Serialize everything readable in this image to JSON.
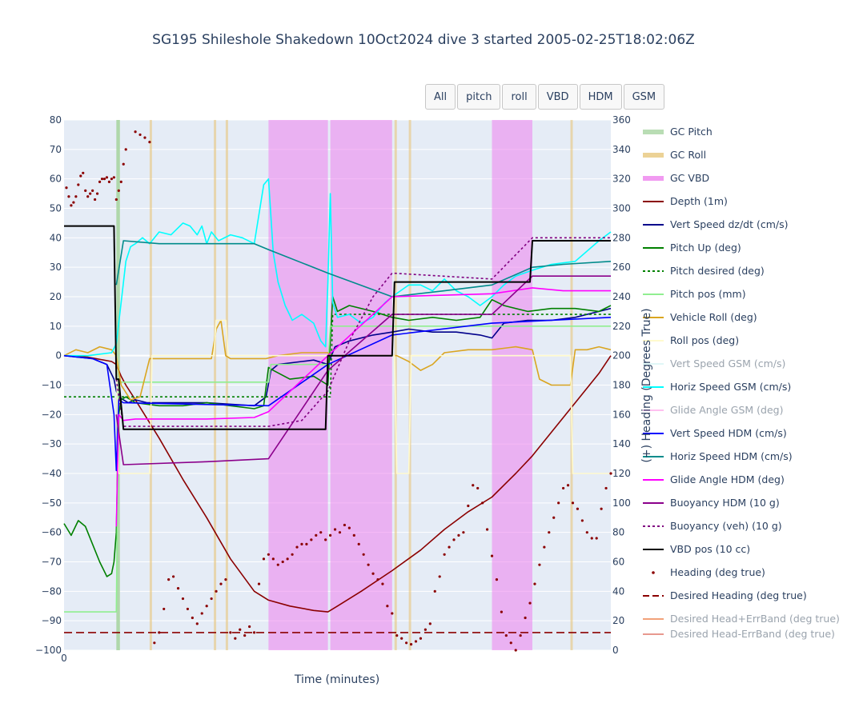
{
  "title": "SG195 Shileshole Shakedown 10Oct2024 dive 3 started 2005-02-25T18:02:06Z",
  "buttons": [
    "All",
    "pitch",
    "roll",
    "VBD",
    "HDM",
    "GSM"
  ],
  "chart_data": {
    "type": "line",
    "xlabel": "Time (minutes)",
    "ylabel_left": "",
    "ylabel_right": "(+) Heading (Degrees True)",
    "x_ticks": [
      "0"
    ],
    "xlim": [
      0,
      230
    ],
    "ylim_left": [
      -100,
      80
    ],
    "ylim_right": [
      0,
      360
    ],
    "y_ticks_left": [
      80,
      70,
      60,
      50,
      40,
      30,
      20,
      10,
      0,
      -10,
      -20,
      -30,
      -40,
      -50,
      -60,
      -70,
      -80,
      -90,
      -100
    ],
    "y_ticks_right": [
      360,
      340,
      320,
      300,
      280,
      260,
      240,
      220,
      200,
      180,
      160,
      140,
      120,
      100,
      80,
      60,
      40,
      20,
      0
    ],
    "grid": true,
    "legend": "right",
    "colors": {
      "plot_bg": "#e5ecf6",
      "gc_pitch": "#a8d5a2",
      "gc_roll": "#e8c77d",
      "gc_vbd": "#ee82ee",
      "depth": "#8b0000",
      "vert_speed": "#00008b",
      "pitch_up": "#008000",
      "pitch_desired": "#008000",
      "pitch_pos": "#90ee90",
      "vehicle_roll": "#daa520",
      "roll_pos": "#fffacd",
      "horiz_gsm": "#00ffff",
      "vert_hdm": "#0000ff",
      "horiz_hdm": "#008b8b",
      "glide_hdm": "#ff00ff",
      "buoy_hdm": "#8b008b",
      "buoy_veh": "#800080",
      "vbd_pos": "#000000",
      "heading": "#8b0000",
      "desired_heading": "#8b0000"
    },
    "gc_pitch_bands": [
      [
        22,
        23.5
      ]
    ],
    "gc_roll_bands": [
      [
        36,
        37
      ],
      [
        63,
        64
      ],
      [
        68,
        69
      ],
      [
        139,
        140
      ],
      [
        145,
        146
      ],
      [
        213,
        214
      ]
    ],
    "gc_vbd_bands": [
      [
        86,
        111
      ],
      [
        112,
        138
      ],
      [
        180,
        197
      ]
    ],
    "series": [
      {
        "name": "GC Pitch",
        "axis": "left",
        "legend_only": true
      },
      {
        "name": "GC Roll",
        "axis": "left",
        "legend_only": true
      },
      {
        "name": "GC VBD",
        "axis": "left",
        "legend_only": true
      },
      {
        "name": "Depth (1m)",
        "axis": "left",
        "x": [
          0,
          10,
          20,
          22,
          24,
          26,
          30,
          40,
          50,
          60,
          70,
          80,
          86,
          95,
          105,
          111,
          115,
          125,
          138,
          150,
          160,
          170,
          180,
          190,
          197,
          205,
          215,
          225,
          230
        ],
        "y": [
          0,
          -0.5,
          -2,
          -3,
          -7,
          -10,
          -15,
          -28,
          -42,
          -55,
          -69,
          -80,
          -83,
          -85,
          -86.5,
          -87,
          -85,
          -80,
          -73,
          -66,
          -59,
          -53,
          -48,
          -40,
          -34,
          -26,
          -16,
          -6,
          0
        ]
      },
      {
        "name": "Vert Speed dz/dt (cm/s)",
        "axis": "left",
        "x": [
          0,
          12,
          18,
          21,
          22,
          23,
          25,
          27,
          30,
          35,
          40,
          50,
          60,
          70,
          80,
          85,
          87,
          90,
          100,
          105,
          111,
          114,
          120,
          130,
          138,
          145,
          155,
          165,
          175,
          180,
          185,
          195,
          205,
          215,
          225,
          230
        ],
        "y": [
          0,
          -1,
          -3,
          -8,
          -12,
          -14,
          -15,
          -16,
          -15,
          -16,
          -16,
          -16,
          -16,
          -16.5,
          -17,
          -14,
          -5,
          -3,
          -2,
          -1.5,
          -3,
          3,
          5,
          7,
          8,
          9,
          8,
          8,
          7,
          6,
          11,
          12,
          12,
          13,
          15,
          16
        ]
      },
      {
        "name": "Pitch Up (deg)",
        "axis": "left",
        "x": [
          0,
          3,
          6,
          9,
          12,
          15,
          18,
          20,
          21,
          22,
          23,
          24,
          26,
          30,
          40,
          50,
          60,
          70,
          80,
          84,
          86,
          88,
          95,
          105,
          111,
          113,
          115,
          120,
          130,
          138,
          145,
          155,
          165,
          175,
          180,
          185,
          195,
          205,
          215,
          225,
          230
        ],
        "y": [
          -57,
          -61,
          -56,
          -58,
          -64,
          -70,
          -75,
          -74,
          -70,
          -60,
          -20,
          -15,
          -14,
          -16,
          -17,
          -17,
          -16,
          -17,
          -18,
          -17,
          -4,
          -5,
          -8,
          -7,
          -10,
          20,
          15,
          17,
          15,
          13,
          12,
          13,
          12,
          13,
          19,
          17,
          15,
          16,
          16,
          15,
          17
        ]
      },
      {
        "name": "Pitch desired (deg)",
        "axis": "left",
        "dash": true,
        "x": [
          0,
          112,
          113,
          230
        ],
        "y": [
          -14,
          -14,
          14,
          14
        ]
      },
      {
        "name": "Pitch pos (mm)",
        "axis": "left",
        "x": [
          0,
          22,
          23,
          86,
          87,
          111,
          112,
          230
        ],
        "y": [
          -87,
          -87,
          -9,
          -9,
          -3,
          -3,
          10,
          10
        ]
      },
      {
        "name": "Vehicle Roll (deg)",
        "axis": "left",
        "x": [
          0,
          5,
          10,
          15,
          20,
          22,
          24,
          28,
          32,
          36,
          38,
          45,
          55,
          62,
          64,
          66,
          68,
          70,
          80,
          85,
          90,
          100,
          111,
          112,
          120,
          130,
          138,
          140,
          145,
          150,
          155,
          160,
          170,
          180,
          190,
          197,
          200,
          205,
          213,
          215,
          220,
          225,
          230
        ],
        "y": [
          0,
          2,
          1,
          3,
          2,
          0,
          -10,
          -15,
          -14,
          -1,
          -1,
          -1,
          -1,
          -1,
          9,
          12,
          0,
          -1,
          -1,
          -1,
          0,
          1,
          1,
          0,
          0,
          0,
          0,
          0,
          -2,
          -5,
          -3,
          1,
          2,
          2,
          3,
          2,
          -8,
          -10,
          -10,
          2,
          2,
          3,
          2
        ]
      },
      {
        "name": "Roll pos (deg)",
        "axis": "left",
        "x": [
          0,
          22,
          23,
          36,
          37,
          63,
          64,
          68,
          69,
          139,
          140,
          145,
          146,
          213,
          214,
          230
        ],
        "y": [
          0,
          0,
          -40,
          -40,
          0,
          0,
          12,
          12,
          0,
          0,
          -40,
          -40,
          0,
          0,
          -40,
          -40
        ]
      },
      {
        "name": "Vert Speed GSM (cm/s)",
        "axis": "left",
        "legend_only": true
      },
      {
        "name": "Horiz Speed GSM (cm/s)",
        "axis": "left",
        "x": [
          0,
          10,
          20,
          22,
          24,
          26,
          28,
          30,
          33,
          36,
          40,
          45,
          50,
          53,
          56,
          58,
          60,
          62,
          65,
          70,
          75,
          80,
          84,
          86,
          88,
          90,
          93,
          96,
          100,
          105,
          108,
          110,
          111,
          112,
          113,
          115,
          120,
          125,
          130,
          135,
          138,
          145,
          150,
          155,
          160,
          165,
          170,
          175,
          180,
          185,
          190,
          197,
          205,
          215,
          225,
          230
        ],
        "y": [
          0,
          0,
          1,
          4,
          18,
          32,
          37,
          38,
          40,
          38,
          42,
          41,
          45,
          44,
          41,
          44,
          38,
          42,
          39,
          41,
          40,
          38,
          58,
          60,
          35,
          25,
          17,
          12,
          14,
          11,
          5,
          3,
          25,
          55,
          18,
          13,
          14,
          11,
          13,
          18,
          20,
          24,
          24,
          22,
          26,
          22,
          20,
          17,
          20,
          24,
          27,
          29,
          31,
          32,
          39,
          42
        ]
      },
      {
        "name": "Glide Angle GSM (deg)",
        "axis": "left",
        "legend_only": true
      },
      {
        "name": "Vert Speed HDM (cm/s)",
        "axis": "left",
        "x": [
          0,
          12,
          18,
          21,
          22,
          23,
          25,
          86,
          111,
          138,
          180,
          230
        ],
        "y": [
          0,
          -1,
          -3,
          -20,
          -39,
          -15,
          -16,
          -17,
          -3,
          7,
          11,
          13
        ]
      },
      {
        "name": "Horiz Speed HDM (cm/s)",
        "axis": "left",
        "x": [
          22,
          25,
          40,
          60,
          80,
          86,
          111,
          138,
          160,
          180,
          197,
          210,
          230
        ],
        "y": [
          24,
          39,
          38,
          38,
          38,
          36,
          28,
          20,
          22,
          24,
          30,
          31,
          32
        ]
      },
      {
        "name": "Glide Angle HDM (deg)",
        "axis": "left",
        "x": [
          22,
          23,
          25,
          30,
          40,
          60,
          80,
          86,
          111,
          138,
          180,
          197,
          210,
          230
        ],
        "y": [
          -58,
          -20,
          -22,
          -21.5,
          -21.5,
          -21.5,
          -21,
          -19,
          0,
          20,
          21,
          23,
          22,
          22
        ]
      },
      {
        "name": "Buoyancy HDM (10 g)",
        "axis": "left",
        "x": [
          22,
          23,
          25,
          60,
          86,
          111,
          138,
          180,
          197,
          230
        ],
        "y": [
          -20,
          -26,
          -37,
          -36,
          -35,
          -5,
          14,
          14,
          27,
          27
        ]
      },
      {
        "name": "Buoyancy (veh) (10 g)",
        "axis": "left",
        "dash": true,
        "x": [
          22,
          25,
          86,
          100,
          111,
          120,
          130,
          138,
          180,
          197,
          230
        ],
        "y": [
          -8,
          -24,
          -24,
          -22,
          -12,
          5,
          20,
          28,
          26,
          40,
          40
        ]
      },
      {
        "name": "VBD pos (10 cc)",
        "axis": "left",
        "x": [
          0,
          20,
          21,
          22,
          23,
          25,
          26,
          110,
          111,
          138,
          139,
          196,
          197,
          230
        ],
        "y": [
          44,
          44,
          44,
          -8,
          -8,
          -25,
          -25,
          -25,
          0,
          0,
          25,
          25,
          39,
          39
        ]
      },
      {
        "name": "Heading (deg true)",
        "axis": "right",
        "markers": true,
        "x": [
          1,
          2,
          3,
          4,
          5,
          6,
          7,
          8,
          9,
          10,
          11,
          12,
          13,
          14,
          15,
          16,
          17,
          18,
          19,
          20,
          21,
          22,
          23,
          24,
          25,
          26,
          30,
          32,
          34,
          36,
          38,
          40,
          42,
          44,
          46,
          48,
          50,
          52,
          54,
          56,
          58,
          60,
          62,
          64,
          66,
          68,
          70,
          72,
          74,
          76,
          78,
          80,
          82,
          84,
          86,
          88,
          90,
          92,
          94,
          96,
          98,
          100,
          102,
          104,
          106,
          108,
          110,
          112,
          114,
          116,
          118,
          120,
          122,
          124,
          126,
          128,
          130,
          132,
          134,
          136,
          138,
          140,
          142,
          144,
          146,
          148,
          150,
          152,
          154,
          156,
          158,
          160,
          162,
          164,
          166,
          168,
          170,
          172,
          174,
          176,
          178,
          180,
          182,
          184,
          186,
          188,
          190,
          192,
          194,
          196,
          198,
          200,
          202,
          204,
          206,
          208,
          210,
          212,
          214,
          216,
          218,
          220,
          222,
          224,
          226,
          228,
          230
        ],
        "y": [
          314,
          308,
          302,
          304,
          308,
          316,
          322,
          324,
          312,
          308,
          310,
          312,
          306,
          310,
          318,
          320,
          320,
          321,
          318,
          320,
          321,
          306,
          312,
          318,
          330,
          340,
          352,
          350,
          348,
          345,
          5,
          12,
          28,
          48,
          50,
          42,
          35,
          28,
          22,
          18,
          25,
          30,
          35,
          40,
          45,
          48,
          12,
          8,
          14,
          10,
          16,
          12,
          45,
          62,
          65,
          62,
          58,
          60,
          62,
          65,
          70,
          72,
          72,
          75,
          78,
          80,
          75,
          78,
          82,
          80,
          85,
          83,
          78,
          72,
          65,
          58,
          52,
          48,
          45,
          30,
          25,
          10,
          8,
          5,
          4,
          6,
          8,
          14,
          18,
          40,
          50,
          65,
          70,
          75,
          78,
          80,
          98,
          112,
          110,
          100,
          82,
          64,
          48,
          26,
          10,
          5,
          0,
          10,
          22,
          32,
          45,
          58,
          70,
          80,
          90,
          100,
          110,
          112,
          100,
          96,
          88,
          80,
          76,
          76,
          96,
          110,
          120
        ]
      },
      {
        "name": "Desired Heading (deg true)",
        "axis": "right",
        "dash": true,
        "x": [
          0,
          230
        ],
        "y": [
          12,
          12
        ]
      },
      {
        "name": "Desired Head+ErrBand (deg true)",
        "axis": "right",
        "legend_only": true
      },
      {
        "name": "Desired Head-ErrBand (deg true)",
        "axis": "right",
        "legend_only": true
      }
    ]
  }
}
